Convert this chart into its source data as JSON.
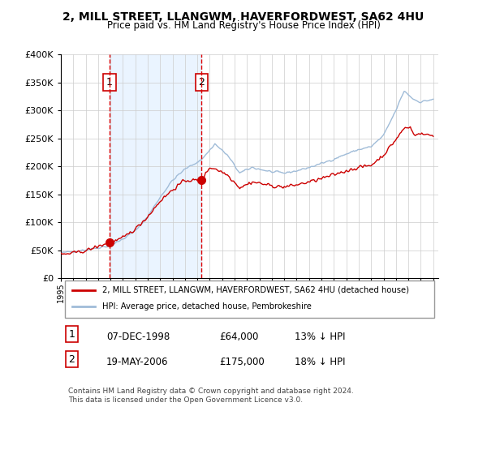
{
  "title": "2, MILL STREET, LLANGWM, HAVERFORDWEST, SA62 4HU",
  "subtitle": "Price paid vs. HM Land Registry's House Price Index (HPI)",
  "sale1_date": "07-DEC-1998",
  "sale1_price": 64000,
  "sale1_hpi_pct": "13% ↓ HPI",
  "sale1_label": "1",
  "sale2_date": "19-MAY-2006",
  "sale2_price": 175000,
  "sale2_hpi_pct": "18% ↓ HPI",
  "sale2_label": "2",
  "legend_red": "2, MILL STREET, LLANGWM, HAVERFORDWEST, SA62 4HU (detached house)",
  "legend_blue": "HPI: Average price, detached house, Pembrokeshire",
  "footnote": "Contains HM Land Registry data © Crown copyright and database right 2024.\nThis data is licensed under the Open Government Licence v3.0.",
  "red_color": "#cc0000",
  "blue_color": "#a0bcd8",
  "bg_fill_color": "#ddeeff",
  "vline_color": "#dd0000",
  "grid_color": "#cccccc",
  "box_color": "#cc0000",
  "ylim_max": 400000,
  "ylim_min": 0
}
